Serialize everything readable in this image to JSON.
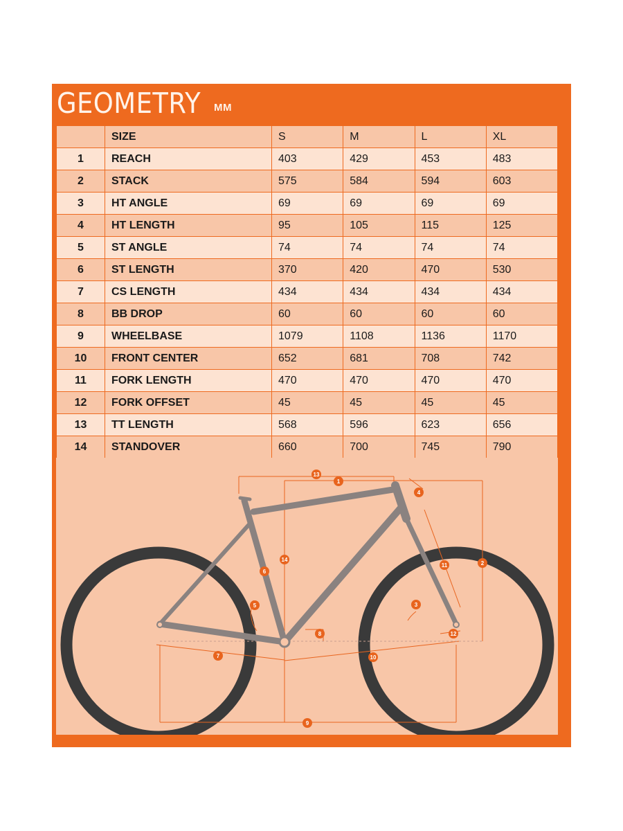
{
  "title": "GEOMETRY",
  "unit": "MM",
  "colors": {
    "accent": "#ee6a1f",
    "row_light": "#fde3d2",
    "row_dark": "#f8c6a8",
    "tire": "#3a3a3a",
    "frame": "#8a8280",
    "dimension": "#e8641e"
  },
  "table": {
    "columns": [
      "",
      "SIZE",
      "S",
      "M",
      "L",
      "XL"
    ],
    "rows": [
      {
        "num": "1",
        "name": "REACH",
        "values": [
          "403",
          "429",
          "453",
          "483"
        ]
      },
      {
        "num": "2",
        "name": "STACK",
        "values": [
          "575",
          "584",
          "594",
          "603"
        ]
      },
      {
        "num": "3",
        "name": "HT ANGLE",
        "values": [
          "69",
          "69",
          "69",
          "69"
        ]
      },
      {
        "num": "4",
        "name": "HT LENGTH",
        "values": [
          "95",
          "105",
          "115",
          "125"
        ]
      },
      {
        "num": "5",
        "name": "ST ANGLE",
        "values": [
          "74",
          "74",
          "74",
          "74"
        ]
      },
      {
        "num": "6",
        "name": "ST LENGTH",
        "values": [
          "370",
          "420",
          "470",
          "530"
        ]
      },
      {
        "num": "7",
        "name": "CS LENGTH",
        "values": [
          "434",
          "434",
          "434",
          "434"
        ]
      },
      {
        "num": "8",
        "name": "BB DROP",
        "values": [
          "60",
          "60",
          "60",
          "60"
        ]
      },
      {
        "num": "9",
        "name": "WHEELBASE",
        "values": [
          "1079",
          "1108",
          "1136",
          "1170"
        ]
      },
      {
        "num": "10",
        "name": "FRONT CENTER",
        "values": [
          "652",
          "681",
          "708",
          "742"
        ]
      },
      {
        "num": "11",
        "name": "FORK LENGTH",
        "values": [
          "470",
          "470",
          "470",
          "470"
        ]
      },
      {
        "num": "12",
        "name": "FORK OFFSET",
        "values": [
          "45",
          "45",
          "45",
          "45"
        ]
      },
      {
        "num": "13",
        "name": "TT LENGTH",
        "values": [
          "568",
          "596",
          "623",
          "656"
        ]
      },
      {
        "num": "14",
        "name": "STANDOVER",
        "values": [
          "660",
          "700",
          "745",
          "790"
        ]
      }
    ]
  },
  "diagram": {
    "image": "bike-frame-geometry-diagram",
    "callouts": [
      "1",
      "2",
      "3",
      "4",
      "5",
      "6",
      "7",
      "8",
      "9",
      "10",
      "11",
      "12",
      "13",
      "14"
    ]
  }
}
